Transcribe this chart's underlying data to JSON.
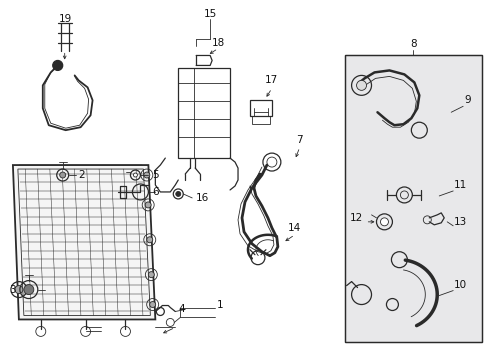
{
  "bg_color": "#ffffff",
  "line_color": "#2a2a2a",
  "label_color": "#111111",
  "box_bg": "#e8e8ea",
  "fig_width": 4.9,
  "fig_height": 3.6,
  "dpi": 100
}
